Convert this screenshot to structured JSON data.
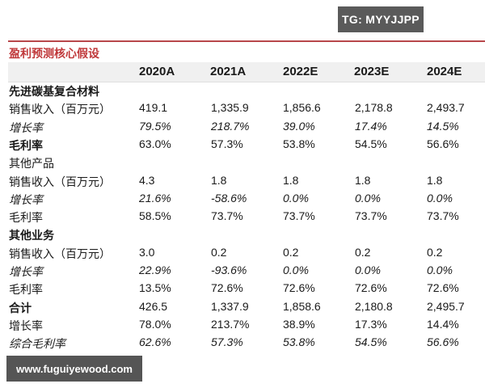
{
  "watermark_top": "TG: MYYJJPP",
  "watermark_bottom": "www.fuguiyewood.com",
  "table": {
    "caption": "盈利预测核心假设",
    "columns": [
      "2020A",
      "2021A",
      "2022E",
      "2023E",
      "2024E"
    ],
    "rows": [
      {
        "label": "先进碳基复合材料",
        "style": "bold",
        "values": [
          "",
          "",
          "",
          "",
          ""
        ]
      },
      {
        "label": "销售收入（百万元）",
        "style": "normal",
        "values": [
          "419.1",
          "1,335.9",
          "1,856.6",
          "2,178.8",
          "2,493.7"
        ]
      },
      {
        "label": "增长率",
        "style": "italic",
        "values": [
          "79.5%",
          "218.7%",
          "39.0%",
          "17.4%",
          "14.5%"
        ]
      },
      {
        "label": "毛利率",
        "style": "bold-label",
        "values": [
          "63.0%",
          "57.3%",
          "53.8%",
          "54.5%",
          "56.6%"
        ]
      },
      {
        "label": "其他产品",
        "style": "normal",
        "values": [
          "",
          "",
          "",
          "",
          ""
        ]
      },
      {
        "label": "销售收入（百万元）",
        "style": "normal",
        "values": [
          "4.3",
          "1.8",
          "1.8",
          "1.8",
          "1.8"
        ]
      },
      {
        "label": "增长率",
        "style": "italic",
        "values": [
          "21.6%",
          "-58.6%",
          "0.0%",
          "0.0%",
          "0.0%"
        ]
      },
      {
        "label": "毛利率",
        "style": "normal",
        "values": [
          "58.5%",
          "73.7%",
          "73.7%",
          "73.7%",
          "73.7%"
        ]
      },
      {
        "label": "其他业务",
        "style": "bold",
        "values": [
          "",
          "",
          "",
          "",
          ""
        ]
      },
      {
        "label": "销售收入（百万元）",
        "style": "normal",
        "values": [
          "3.0",
          "0.2",
          "0.2",
          "0.2",
          "0.2"
        ]
      },
      {
        "label": "增长率",
        "style": "italic",
        "values": [
          "22.9%",
          "-93.6%",
          "0.0%",
          "0.0%",
          "0.0%"
        ]
      },
      {
        "label": "毛利率",
        "style": "normal",
        "values": [
          "13.5%",
          "72.6%",
          "72.6%",
          "72.6%",
          "72.6%"
        ]
      },
      {
        "label": "合计",
        "style": "bold-label",
        "values": [
          "426.5",
          "1,337.9",
          "1,858.6",
          "2,180.8",
          "2,495.7"
        ]
      },
      {
        "label": "增长率",
        "style": "normal",
        "values": [
          "78.0%",
          "213.7%",
          "38.9%",
          "17.3%",
          "14.4%"
        ]
      },
      {
        "label": "综合毛利率",
        "style": "italic",
        "values": [
          "62.6%",
          "57.3%",
          "53.8%",
          "54.5%",
          "56.6%"
        ]
      }
    ]
  }
}
